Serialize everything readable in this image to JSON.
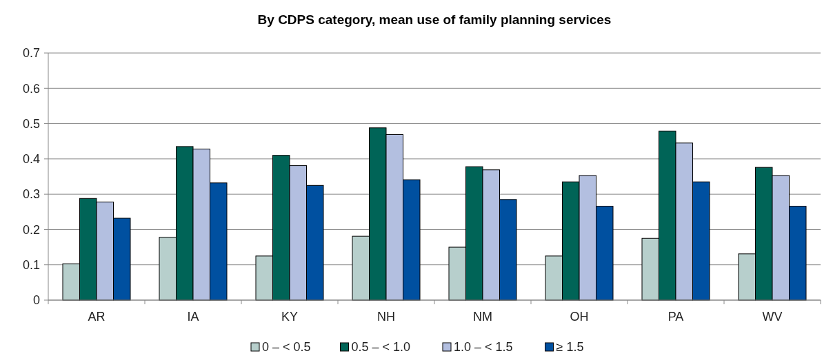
{
  "chart_data": {
    "type": "bar",
    "title": "By CDPS category, mean use of family planning services",
    "categories": [
      "AR",
      "IA",
      "KY",
      "NH",
      "NM",
      "OH",
      "PA",
      "WV"
    ],
    "series": [
      {
        "name": "0 – < 0.5",
        "color": "#b7cfcc",
        "values": [
          0.103,
          0.178,
          0.125,
          0.181,
          0.15,
          0.125,
          0.175,
          0.131
        ]
      },
      {
        "name": "0.5 – < 1.0",
        "color": "#006457",
        "values": [
          0.288,
          0.435,
          0.41,
          0.488,
          0.378,
          0.335,
          0.479,
          0.376
        ]
      },
      {
        "name": "1.0 – < 1.5",
        "color": "#b3bfe0",
        "values": [
          0.278,
          0.428,
          0.381,
          0.469,
          0.369,
          0.353,
          0.445,
          0.353
        ]
      },
      {
        "name": "≥ 1.5",
        "color": "#0050a0",
        "values": [
          0.232,
          0.332,
          0.325,
          0.341,
          0.285,
          0.266,
          0.335,
          0.266
        ]
      }
    ],
    "ylim": [
      0,
      0.7
    ],
    "yticks": [
      0,
      0.1,
      0.2,
      0.3,
      0.4,
      0.5,
      0.6,
      0.7
    ],
    "grid": "y",
    "legend": "bottom"
  }
}
